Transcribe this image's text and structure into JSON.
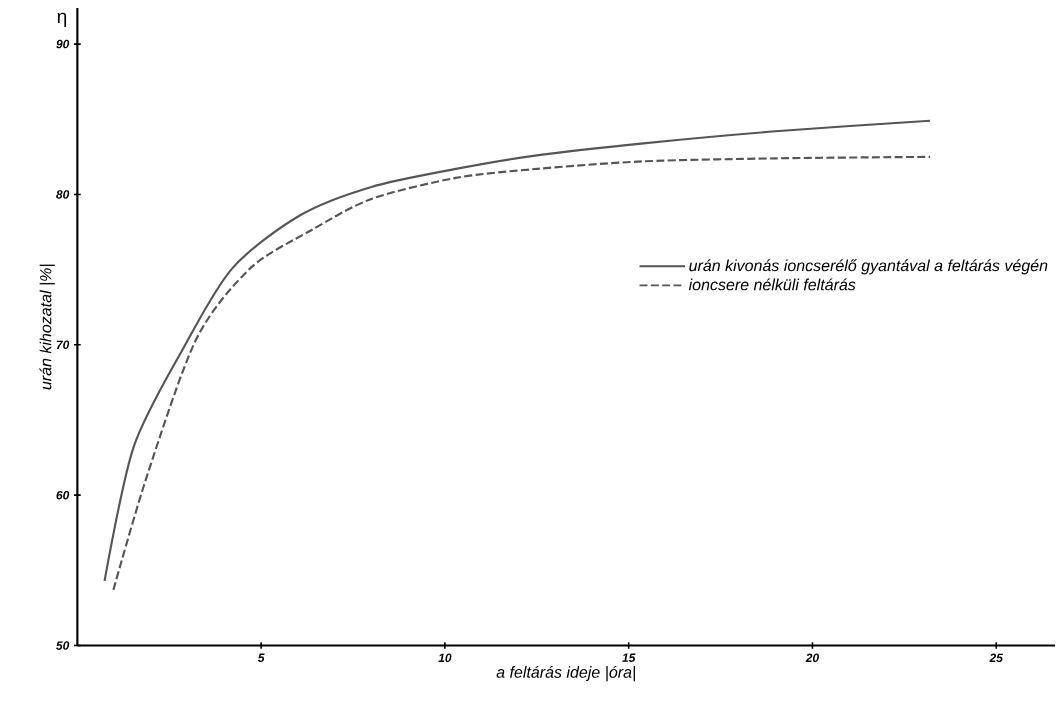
{
  "chart_data": {
    "type": "line",
    "xlabel": "a feltárás ideje |óra|",
    "ylabel": "urán kihozatal |%|",
    "annotations": [
      "η"
    ],
    "xlim": [
      0,
      26.6
    ],
    "ylim": [
      50,
      92.4
    ],
    "xticks": [
      5,
      10,
      15,
      20,
      25
    ],
    "yticks": [
      50,
      60,
      70,
      80,
      90
    ],
    "legend": "right",
    "series": [
      {
        "name": "urán kivonás ioncserélő gyantával a feltárás végén",
        "color": "#555555",
        "line_style": "solid",
        "x": [
          0.74,
          1.53,
          2.89,
          4.22,
          6.05,
          8.0,
          10.3,
          12.5,
          15.4,
          19.0,
          23.2
        ],
        "values": [
          54.3,
          63.2,
          69.8,
          75.1,
          78.6,
          80.5,
          81.7,
          82.6,
          83.4,
          84.2,
          84.9
        ]
      },
      {
        "name": "ioncsere nélküli feltárás",
        "color": "#555555",
        "line_style": "dashed",
        "x": [
          0.98,
          1.91,
          3.24,
          4.71,
          6.35,
          8.0,
          10.3,
          12.5,
          15.4,
          19.0,
          23.2
        ],
        "values": [
          53.7,
          61.4,
          70.4,
          75.1,
          77.6,
          79.7,
          81.1,
          81.7,
          82.2,
          82.4,
          82.5
        ]
      }
    ]
  }
}
